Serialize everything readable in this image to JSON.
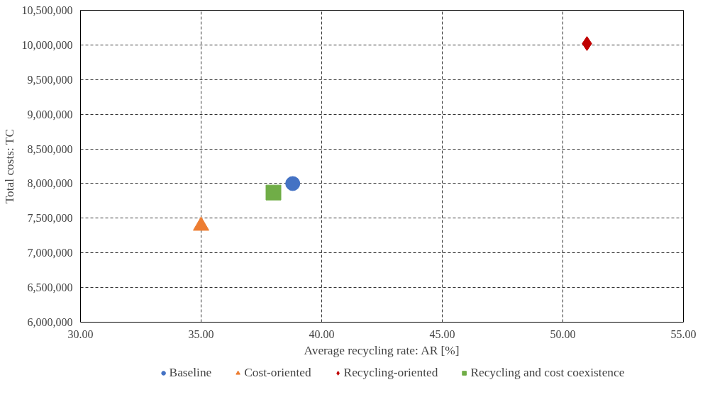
{
  "chart_data": {
    "type": "scatter",
    "xlabel": "Average recycling rate: AR [%]",
    "ylabel": "Total costs: TC",
    "xlim": [
      30,
      55
    ],
    "xticks": [
      {
        "value": 30,
        "label": "30.00"
      },
      {
        "value": 35,
        "label": "35.00"
      },
      {
        "value": 40,
        "label": "40.00"
      },
      {
        "value": 45,
        "label": "45.00"
      },
      {
        "value": 50,
        "label": "50.00"
      },
      {
        "value": 55,
        "label": "55.00"
      }
    ],
    "ylim": [
      6000000,
      10500000
    ],
    "yticks": [
      {
        "value": 6000000,
        "label": "6,000,000"
      },
      {
        "value": 6500000,
        "label": "6,500,000"
      },
      {
        "value": 7000000,
        "label": "7,000,000"
      },
      {
        "value": 7500000,
        "label": "7,500,000"
      },
      {
        "value": 8000000,
        "label": "8,000,000"
      },
      {
        "value": 8500000,
        "label": "8,500,000"
      },
      {
        "value": 9000000,
        "label": "9,000,000"
      },
      {
        "value": 9500000,
        "label": "9,500,000"
      },
      {
        "value": 10000000,
        "label": "10,000,000"
      },
      {
        "value": 10500000,
        "label": "10,500,000"
      }
    ],
    "grid": true,
    "legend": "bottom",
    "series": [
      {
        "name": "Baseline",
        "color": "#4472c4",
        "marker": "circle",
        "x": [
          38.8
        ],
        "values": [
          8000000
        ]
      },
      {
        "name": "Cost-oriented",
        "color": "#ed7d31",
        "marker": "triangle",
        "x": [
          35.0
        ],
        "values": [
          7390000
        ]
      },
      {
        "name": "Recycling-oriented",
        "color": "#c00000",
        "marker": "diamond",
        "x": [
          51.0
        ],
        "values": [
          10020000
        ]
      },
      {
        "name": "Recycling and cost coexistence",
        "color": "#70ad47",
        "marker": "square",
        "x": [
          38.0
        ],
        "values": [
          7870000
        ]
      }
    ]
  }
}
